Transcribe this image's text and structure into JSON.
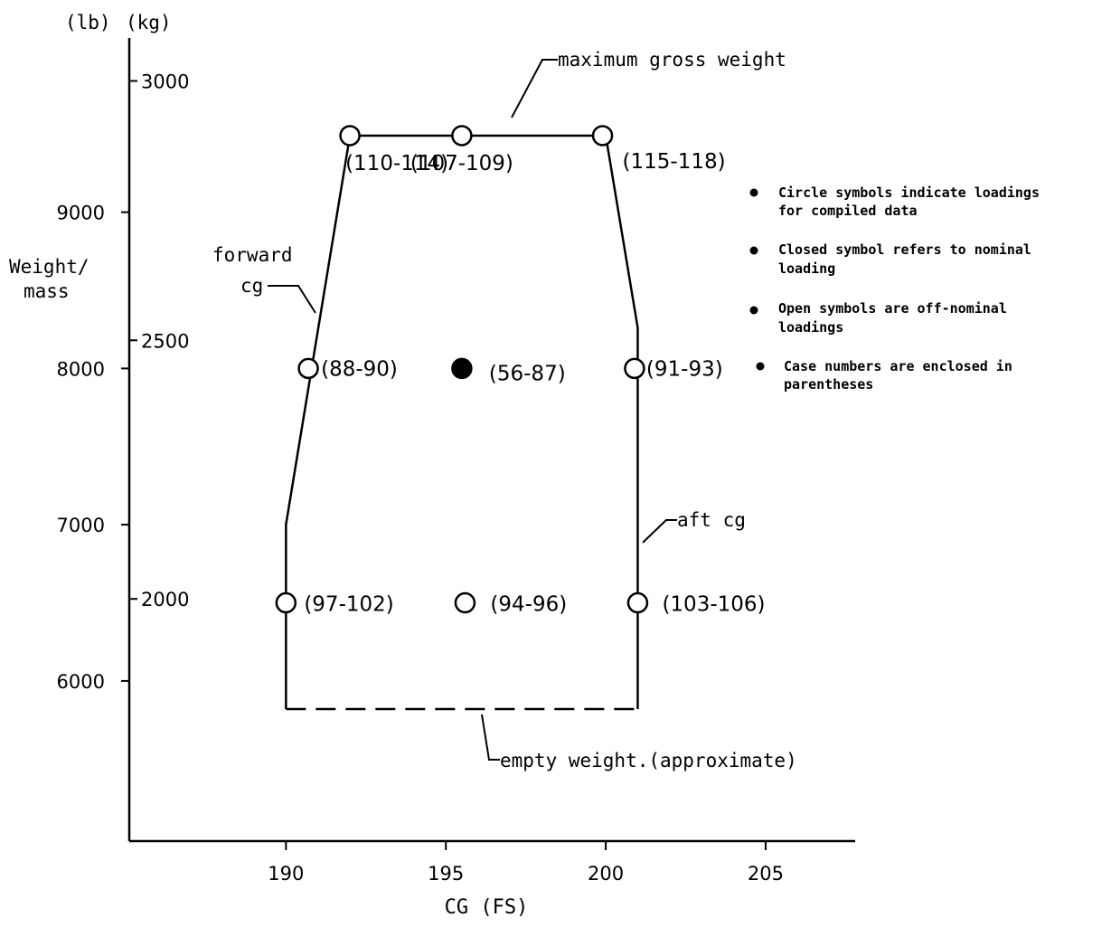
{
  "chart_data": {
    "type": "scatter",
    "x_axis": {
      "label": "CG (FS)",
      "ticks": [
        190,
        195,
        200,
        205
      ],
      "range": [
        185.1,
        207.8
      ]
    },
    "y_axis": {
      "label_line1": "Weight/",
      "label_line2": "mass",
      "unit_lb": "(lb)",
      "unit_kg": "(kg)",
      "lb_ticks": [
        6000,
        7000,
        8000,
        9000
      ],
      "kg_ticks": [
        {
          "label": "2000",
          "lb": 6525
        },
        {
          "label": "2500",
          "lb": 8180
        },
        {
          "label": "3000",
          "lb": 9840
        }
      ],
      "range_lb": [
        4975,
        10115
      ]
    },
    "envelope": {
      "solid": [
        [
          190.0,
          5820
        ],
        [
          190.0,
          7000
        ],
        [
          192.0,
          9490
        ],
        [
          200.0,
          9490
        ],
        [
          201.0,
          8260
        ],
        [
          201.0,
          5820
        ]
      ],
      "dashed": [
        [
          190.0,
          5820
        ],
        [
          201.0,
          5820
        ]
      ]
    },
    "points": [
      {
        "x": 192.0,
        "y": 9490,
        "label": "(110-114)",
        "filled": false
      },
      {
        "x": 195.5,
        "y": 9490,
        "label": "(107-109)",
        "filled": false
      },
      {
        "x": 199.9,
        "y": 9490,
        "label": "(115-118)",
        "filled": false
      },
      {
        "x": 190.7,
        "y": 8000,
        "label": "(88-90)",
        "filled": false
      },
      {
        "x": 195.5,
        "y": 8000,
        "label": "(56-87)",
        "filled": true
      },
      {
        "x": 200.9,
        "y": 8000,
        "label": "(91-93)",
        "filled": false
      },
      {
        "x": 190.0,
        "y": 6500,
        "label": "(97-102)",
        "filled": false
      },
      {
        "x": 195.6,
        "y": 6500,
        "label": "(94-96)",
        "filled": false
      },
      {
        "x": 201.0,
        "y": 6500,
        "label": "(103-106)",
        "filled": false
      }
    ],
    "annotations": {
      "max_gross": "maximum gross weight",
      "forward_cg_line1": "forward",
      "forward_cg_line2": "cg",
      "aft_cg": "aft cg",
      "empty_weight": "empty weight.(approximate)"
    },
    "legend": {
      "placement": "right",
      "items": [
        [
          "Circle symbols indicate loadings",
          "for compiled data"
        ],
        [
          "Closed symbol refers to nominal",
          "loading"
        ],
        [
          "Open symbols are off-nominal",
          "loadings"
        ],
        [
          "Case numbers are enclosed in",
          "parentheses"
        ]
      ]
    },
    "grid": false
  }
}
